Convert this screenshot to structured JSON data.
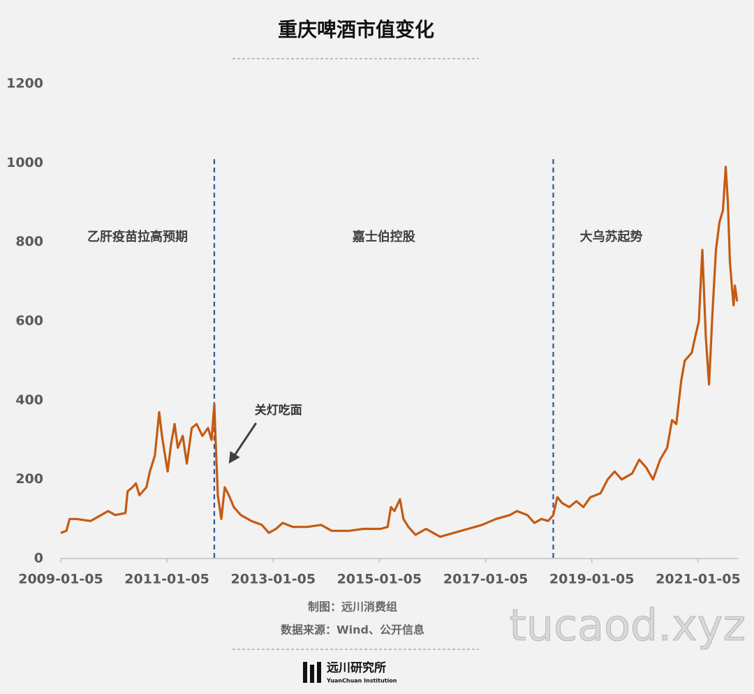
{
  "chart_data": {
    "type": "line",
    "title": "重庆啤酒市值变化",
    "x": [
      "2009-01-05",
      "2009-02-13",
      "2009-03-07",
      "2009-04-24",
      "2009-07-29",
      "2009-10-10",
      "2009-11-27",
      "2010-01-15",
      "2010-03-26",
      "2010-04-10",
      "2010-05-13",
      "2010-06-06",
      "2010-06-30",
      "2010-08-17",
      "2010-09-10",
      "2010-10-14",
      "2010-11-13",
      "2010-12-02",
      "2011-01-10",
      "2011-02-03",
      "2011-02-27",
      "2011-03-21",
      "2011-04-24",
      "2011-05-22",
      "2011-06-25",
      "2011-07-29",
      "2011-09-06",
      "2011-10-15",
      "2011-11-08",
      "2011-11-27",
      "2011-12-06",
      "2011-12-21",
      "2012-01-14",
      "2012-02-07",
      "2012-03-06",
      "2012-04-09",
      "2012-05-27",
      "2012-08-08",
      "2012-10-19",
      "2012-12-06",
      "2013-01-24",
      "2013-03-11",
      "2013-05-22",
      "2013-08-27",
      "2013-12-01",
      "2014-02-12",
      "2014-06-11",
      "2014-09-16",
      "2015-01-14",
      "2015-03-03",
      "2015-03-26",
      "2015-04-19",
      "2015-05-27",
      "2015-06-20",
      "2015-07-24",
      "2015-09-11",
      "2015-11-22",
      "2016-01-10",
      "2016-02-27",
      "2016-06-01",
      "2016-09-06",
      "2016-12-11",
      "2017-03-17",
      "2017-06-21",
      "2017-08-08",
      "2017-10-19",
      "2017-12-06",
      "2018-01-24",
      "2018-03-11",
      "2018-04-15",
      "2018-05-13",
      "2018-06-16",
      "2018-08-03",
      "2018-09-21",
      "2018-11-08",
      "2018-12-26",
      "2019-03-06",
      "2019-04-24",
      "2019-06-11",
      "2019-07-29",
      "2019-10-09",
      "2019-11-27",
      "2020-01-14",
      "2020-03-01",
      "2020-04-19",
      "2020-06-06",
      "2020-07-10",
      "2020-08-08",
      "2020-09-11",
      "2020-10-05",
      "2020-11-22",
      "2020-12-16",
      "2021-01-10",
      "2021-02-03",
      "2021-02-27",
      "2021-03-21",
      "2021-04-14",
      "2021-05-08",
      "2021-06-01",
      "2021-06-25",
      "2021-07-14",
      "2021-07-29",
      "2021-08-12",
      "2021-08-27",
      "2021-09-06",
      "2021-09-15",
      "2021-09-30"
    ],
    "series": [
      {
        "color": "#c55a11",
        "values": [
          65,
          70,
          100,
          100,
          95,
          110,
          120,
          110,
          115,
          170,
          180,
          190,
          160,
          180,
          220,
          260,
          370,
          310,
          220,
          290,
          340,
          280,
          310,
          240,
          330,
          340,
          310,
          330,
          300,
          390,
          300,
          160,
          100,
          180,
          160,
          130,
          110,
          95,
          85,
          65,
          75,
          90,
          80,
          80,
          85,
          70,
          70,
          75,
          75,
          80,
          130,
          120,
          150,
          100,
          80,
          60,
          75,
          65,
          55,
          65,
          75,
          85,
          100,
          110,
          120,
          110,
          90,
          100,
          95,
          110,
          155,
          140,
          130,
          145,
          130,
          155,
          165,
          200,
          220,
          200,
          215,
          250,
          230,
          200,
          250,
          280,
          350,
          340,
          450,
          500,
          520,
          560,
          600,
          780,
          560,
          440,
          620,
          780,
          850,
          880,
          990,
          900,
          750,
          680,
          640,
          690,
          650
        ]
      }
    ],
    "xlim": [
      "2009-01-05",
      "2021-10-06"
    ],
    "xticks": [
      "2009-01-05",
      "2011-01-05",
      "2013-01-05",
      "2015-01-05",
      "2017-01-05",
      "2019-01-05",
      "2021-01-05"
    ],
    "ylim": [
      0,
      1200
    ],
    "yticks": [
      0,
      200,
      400,
      600,
      800,
      1000,
      1200
    ],
    "dividers": [
      "2011-11-27",
      "2018-04-15"
    ],
    "region_labels": [
      "乙肝疫苗拉高预期",
      "嘉士伯控股",
      "大乌苏起势"
    ],
    "annotation": {
      "text": "关灯吃面",
      "x": "2012-03-01",
      "y": 240
    }
  },
  "footer": {
    "credit": "制图：远川消费组",
    "source": "数据来源：Wind、公开信息",
    "logo": "远川研究所",
    "logo_en": "YuanChuan Institution"
  },
  "watermark": "tucaod.xyz"
}
